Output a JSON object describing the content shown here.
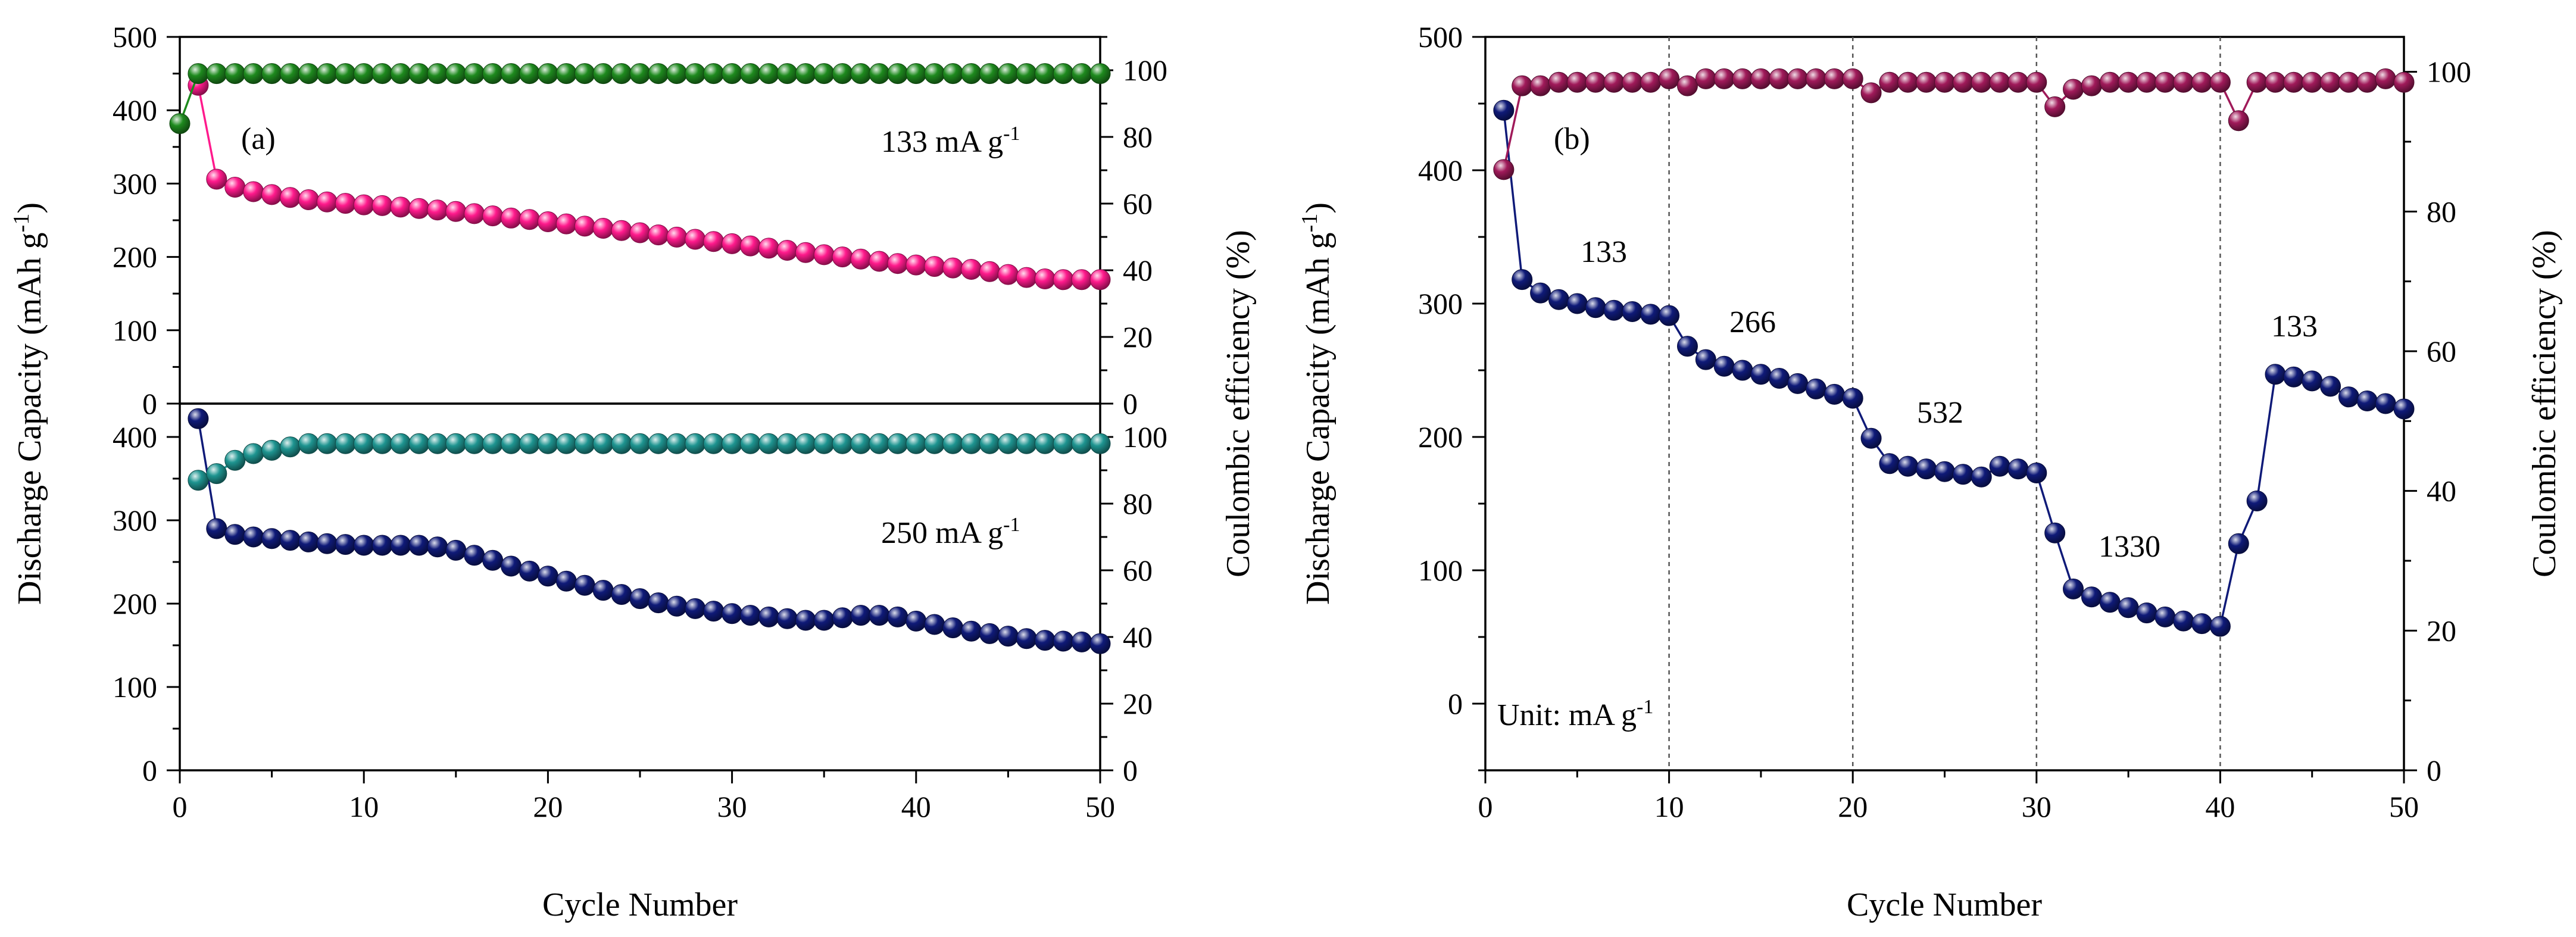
{
  "chart_data": [
    {
      "id": "a-top",
      "type": "scatter",
      "panel_label": "(a)",
      "annotation": "133 mA g",
      "annotation_sup": "-1",
      "xlim": [
        0,
        50
      ],
      "xticks": [
        0,
        10,
        20,
        30,
        40,
        50
      ],
      "ylim_left": [
        0,
        500
      ],
      "yticks_left": [
        0,
        100,
        200,
        300,
        400,
        500
      ],
      "ylim_right": [
        0,
        110
      ],
      "yticks_right": [
        0,
        20,
        40,
        60,
        80,
        100
      ],
      "series": [
        {
          "name": "Discharge capacity (133 mA g-1)",
          "axis": "left",
          "color": "#ff1a8c",
          "x": [
            1,
            2,
            3,
            4,
            5,
            6,
            7,
            8,
            9,
            10,
            11,
            12,
            13,
            14,
            15,
            16,
            17,
            18,
            19,
            20,
            21,
            22,
            23,
            24,
            25,
            26,
            27,
            28,
            29,
            30,
            31,
            32,
            33,
            34,
            35,
            36,
            37,
            38,
            39,
            40,
            41,
            42,
            43,
            44,
            45,
            46,
            47,
            48,
            49,
            50
          ],
          "values": [
            434,
            306,
            295,
            289,
            285,
            281,
            278,
            275,
            273,
            271,
            270,
            268,
            266,
            264,
            262,
            259,
            256,
            253,
            251,
            248,
            245,
            242,
            239,
            236,
            233,
            230,
            227,
            224,
            221,
            218,
            215,
            212,
            209,
            206,
            203,
            200,
            197,
            194,
            191,
            189,
            187,
            185,
            183,
            180,
            176,
            172,
            170,
            169,
            169,
            169
          ]
        },
        {
          "name": "Coulombic efficiency (133 mA g-1)",
          "axis": "right",
          "color": "#1e8a1e",
          "x": [
            0,
            1,
            2,
            3,
            4,
            5,
            6,
            7,
            8,
            9,
            10,
            11,
            12,
            13,
            14,
            15,
            16,
            17,
            18,
            19,
            20,
            21,
            22,
            23,
            24,
            25,
            26,
            27,
            28,
            29,
            30,
            31,
            32,
            33,
            34,
            35,
            36,
            37,
            38,
            39,
            40,
            41,
            42,
            43,
            44,
            45,
            46,
            47,
            48,
            49,
            50
          ],
          "values": [
            84,
            99,
            99,
            99,
            99,
            99,
            99,
            99,
            99,
            99,
            99,
            99,
            99,
            99,
            99,
            99,
            99,
            99,
            99,
            99,
            99,
            99,
            99,
            99,
            99,
            99,
            99,
            99,
            99,
            99,
            99,
            99,
            99,
            99,
            99,
            99,
            99,
            99,
            99,
            99,
            99,
            99,
            99,
            99,
            99,
            99,
            99,
            99,
            99,
            99,
            99
          ]
        }
      ]
    },
    {
      "id": "a-bottom",
      "type": "scatter",
      "annotation": "250 mA g",
      "annotation_sup": "-1",
      "xlabel": "Cycle Number",
      "xlim": [
        0,
        50
      ],
      "xticks": [
        0,
        10,
        20,
        30,
        40,
        50
      ],
      "ylim_left": [
        0,
        440
      ],
      "yticks_left": [
        0,
        100,
        200,
        300,
        400
      ],
      "ylim_right": [
        0,
        110
      ],
      "yticks_right": [
        0,
        20,
        40,
        60,
        80,
        100
      ],
      "series": [
        {
          "name": "Discharge capacity (250 mA g-1)",
          "axis": "left",
          "color": "#0f1a78",
          "x": [
            1,
            2,
            3,
            4,
            5,
            6,
            7,
            8,
            9,
            10,
            11,
            12,
            13,
            14,
            15,
            16,
            17,
            18,
            19,
            20,
            21,
            22,
            23,
            24,
            25,
            26,
            27,
            28,
            29,
            30,
            31,
            32,
            33,
            34,
            35,
            36,
            37,
            38,
            39,
            40,
            41,
            42,
            43,
            44,
            45,
            46,
            47,
            48,
            49,
            50
          ],
          "values": [
            422,
            290,
            283,
            280,
            278,
            276,
            274,
            272,
            271,
            270,
            270,
            270,
            270,
            268,
            264,
            258,
            252,
            245,
            239,
            233,
            227,
            222,
            216,
            211,
            206,
            201,
            197,
            194,
            191,
            188,
            186,
            184,
            182,
            180,
            180,
            183,
            186,
            186,
            184,
            179,
            175,
            171,
            167,
            164,
            161,
            158,
            156,
            155,
            154,
            152
          ]
        },
        {
          "name": "Coulombic efficiency (250 mA g-1)",
          "axis": "right",
          "color": "#1e9490",
          "x": [
            1,
            2,
            3,
            4,
            5,
            6,
            7,
            8,
            9,
            10,
            11,
            12,
            13,
            14,
            15,
            16,
            17,
            18,
            19,
            20,
            21,
            22,
            23,
            24,
            25,
            26,
            27,
            28,
            29,
            30,
            31,
            32,
            33,
            34,
            35,
            36,
            37,
            38,
            39,
            40,
            41,
            42,
            43,
            44,
            45,
            46,
            47,
            48,
            49,
            50
          ],
          "values": [
            87,
            89,
            93,
            95,
            96,
            97,
            98,
            98,
            98,
            98,
            98,
            98,
            98,
            98,
            98,
            98,
            98,
            98,
            98,
            98,
            98,
            98,
            98,
            98,
            98,
            98,
            98,
            98,
            98,
            98,
            98,
            98,
            98,
            98,
            98,
            98,
            98,
            98,
            98,
            98,
            98,
            98,
            98,
            98,
            98,
            98,
            98,
            98,
            98,
            98
          ]
        }
      ]
    },
    {
      "id": "b",
      "type": "scatter",
      "panel_label": "(b)",
      "xlabel": "Cycle Number",
      "ylabel_left": "Discharge Capacity (mAh g",
      "ylabel_left_sup": "-1",
      "ylabel_right": "Coulombic efficiency (%)",
      "xlim": [
        0,
        50
      ],
      "xticks": [
        0,
        10,
        20,
        30,
        40,
        50
      ],
      "ylim_left": [
        -50,
        500
      ],
      "yticks_left": [
        0,
        100,
        200,
        300,
        400,
        500
      ],
      "ylim_right": [
        0,
        105
      ],
      "yticks_right": [
        0,
        20,
        40,
        60,
        80,
        100
      ],
      "dashed_x": [
        10,
        20,
        30,
        40
      ],
      "unit_note": "Unit: mA g",
      "unit_note_sup": "-1",
      "rate_labels": [
        "133",
        "266",
        "532",
        "1330",
        "133"
      ],
      "series": [
        {
          "name": "Discharge capacity (rate test)",
          "axis": "left",
          "color": "#0f1a78",
          "x": [
            1,
            2,
            3,
            4,
            5,
            6,
            7,
            8,
            9,
            10,
            11,
            12,
            13,
            14,
            15,
            16,
            17,
            18,
            19,
            20,
            21,
            22,
            23,
            24,
            25,
            26,
            27,
            28,
            29,
            30,
            31,
            32,
            33,
            34,
            35,
            36,
            37,
            38,
            39,
            40,
            41,
            42,
            43,
            44,
            45,
            46,
            47,
            48,
            49,
            50
          ],
          "values": [
            445,
            318,
            308,
            303,
            300,
            297,
            295,
            294,
            292,
            291,
            268,
            258,
            253,
            250,
            247,
            244,
            240,
            236,
            232,
            229,
            199,
            180,
            178,
            176,
            174,
            172,
            170,
            178,
            176,
            173,
            128,
            86,
            80,
            76,
            72,
            68,
            65,
            62,
            60,
            58,
            120,
            152,
            247,
            245,
            242,
            238,
            230,
            227,
            225,
            221
          ]
        },
        {
          "name": "Coulombic efficiency (rate test)",
          "axis": "right",
          "color": "#a01a5a",
          "x": [
            1,
            2,
            3,
            4,
            5,
            6,
            7,
            8,
            9,
            10,
            11,
            12,
            13,
            14,
            15,
            16,
            17,
            18,
            19,
            20,
            21,
            22,
            23,
            24,
            25,
            26,
            27,
            28,
            29,
            30,
            31,
            32,
            33,
            34,
            35,
            36,
            37,
            38,
            39,
            40,
            41,
            42,
            43,
            44,
            45,
            46,
            47,
            48,
            49,
            50
          ],
          "values": [
            86,
            98,
            98,
            98.5,
            98.5,
            98.5,
            98.5,
            98.5,
            98.5,
            99,
            98,
            99,
            99,
            99,
            99,
            99,
            99,
            99,
            99,
            99,
            97,
            98.5,
            98.5,
            98.5,
            98.5,
            98.5,
            98.5,
            98.5,
            98.5,
            98.5,
            95,
            97.5,
            98,
            98.5,
            98.5,
            98.5,
            98.5,
            98.5,
            98.5,
            98.5,
            93,
            98.5,
            98.5,
            98.5,
            98.5,
            98.5,
            98.5,
            98.5,
            99,
            98.5
          ]
        }
      ]
    }
  ],
  "left_panel": {
    "ylabel_left": "Discharge Capacity (mAh g",
    "ylabel_left_sup": "-1",
    "ylabel_right": "Coulombic efficiency (%)"
  }
}
